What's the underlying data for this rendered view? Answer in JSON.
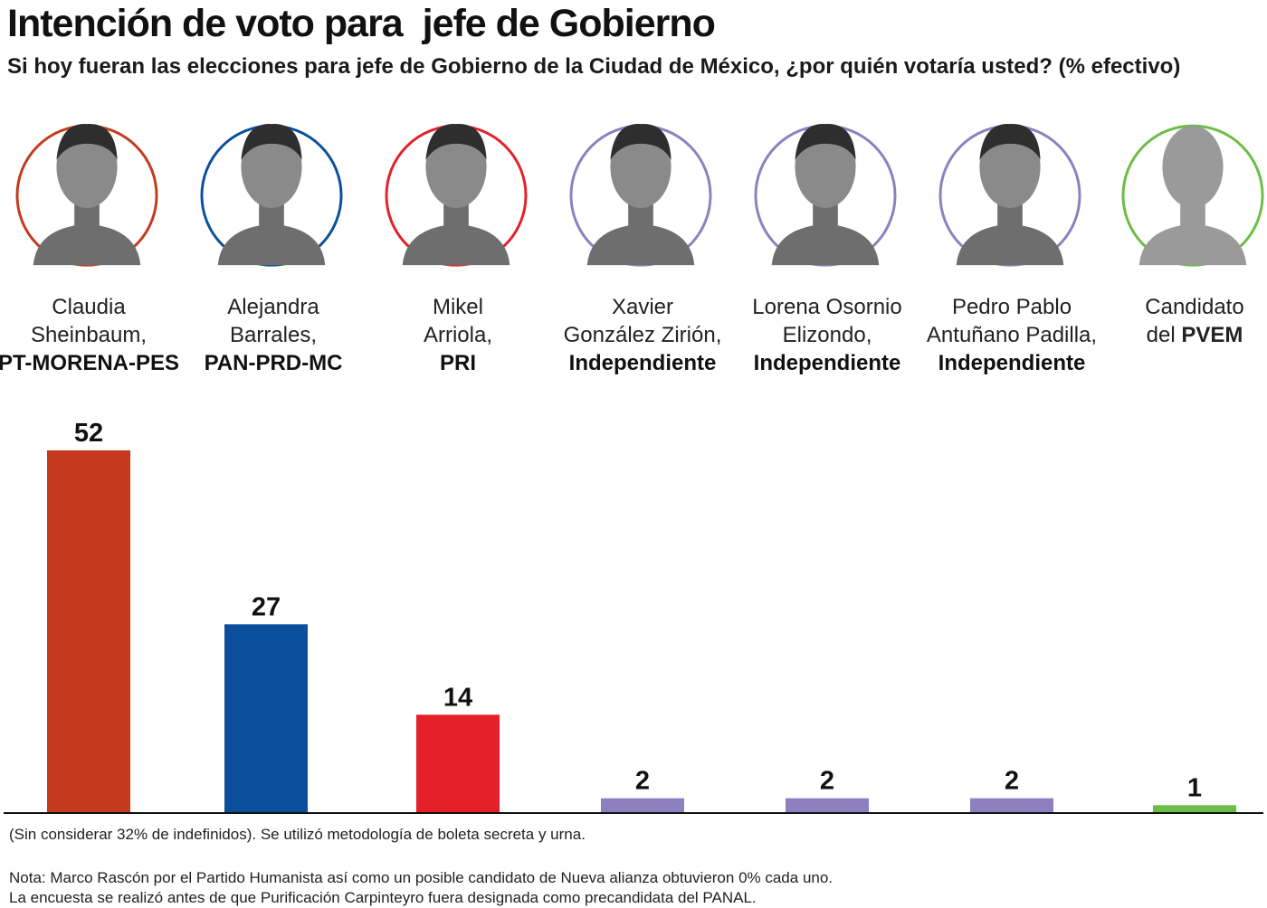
{
  "title": "Intención de voto para  jefe de Gobierno",
  "subtitle": "Si hoy fueran las elecciones para jefe de Gobierno de la Ciudad de México, ¿por quién votaría usted? (% efectivo)",
  "candidates": [
    {
      "name_lines": [
        "Claudia",
        "Sheinbaum,"
      ],
      "party": "PT-MORENA-PES",
      "party_inline": false,
      "color": "#c33a1e",
      "portrait": "portrait-icon"
    },
    {
      "name_lines": [
        "Alejandra",
        "Barrales,"
      ],
      "party": "PAN-PRD-MC",
      "party_inline": false,
      "color": "#0b4f9c",
      "portrait": "portrait-icon"
    },
    {
      "name_lines": [
        "Mikel",
        "Arriola,"
      ],
      "party": "PRI",
      "party_inline": false,
      "color": "#e42028",
      "portrait": "portrait-icon"
    },
    {
      "name_lines": [
        "Xavier",
        "González Zirión,"
      ],
      "party": "Independiente",
      "party_inline": false,
      "color": "#8c80c0",
      "portrait": "portrait-icon"
    },
    {
      "name_lines": [
        "Lorena Osornio",
        "Elizondo,"
      ],
      "party": "Independiente",
      "party_inline": false,
      "color": "#8c80c0",
      "portrait": "portrait-icon"
    },
    {
      "name_lines": [
        "Pedro Pablo",
        "Antuñano Padilla,"
      ],
      "party": "Independiente",
      "party_inline": false,
      "color": "#8c80c0",
      "portrait": "portrait-icon"
    },
    {
      "name_lines": [
        "Candidato",
        "del"
      ],
      "party": "PVEM",
      "party_inline": true,
      "color": "#6bbd45",
      "portrait": "silhouette-icon"
    }
  ],
  "chart_data": {
    "type": "bar",
    "categories": [
      "Claudia Sheinbaum, PT-MORENA-PES",
      "Alejandra Barrales, PAN-PRD-MC",
      "Mikel Arriola, PRI",
      "Xavier González Zirión, Independiente",
      "Lorena Osornio Elizondo, Independiente",
      "Pedro Pablo Antuñano Padilla, Independiente",
      "Candidato del PVEM"
    ],
    "values": [
      52,
      27,
      14,
      2,
      2,
      2,
      1
    ],
    "colors": [
      "#c33a1e",
      "#0b4f9c",
      "#e42028",
      "#8c80c0",
      "#8c80c0",
      "#8c80c0",
      "#6bbd45"
    ],
    "ylim": [
      0,
      52
    ],
    "grid": false,
    "data_labels": true
  },
  "notes": {
    "line1": "(Sin considerar 32% de indefinidos). Se utilizó metodología de boleta secreta y urna.",
    "line2": "Nota: Marco Rascón por el Partido Humanista así como un posible candidato de Nueva alianza obtuvieron 0% cada uno.",
    "line3": "La encuesta se realizó antes de que Purificación Carpinteyro fuera designada como precandidata del  PANAL."
  }
}
